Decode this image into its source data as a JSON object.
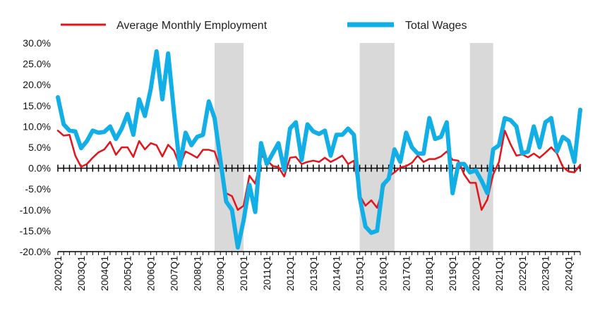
{
  "chart_data": {
    "type": "line",
    "title": "",
    "xlabel": "",
    "ylabel": "",
    "ylim": [
      -20,
      30
    ],
    "yticks": [
      "30.0%",
      "25.0%",
      "20.0%",
      "15.0%",
      "10.0%",
      "5.0%",
      "0.0%",
      "-5.0%",
      "-10.0%",
      "-15.0%",
      "-20.0%"
    ],
    "ytick_values": [
      30,
      25,
      20,
      15,
      10,
      5,
      0,
      -5,
      -10,
      -15,
      -20
    ],
    "xtick_labels": [
      "2002Q1",
      "2003Q1",
      "2004Q1",
      "2005Q1",
      "2006Q1",
      "2007Q1",
      "2008Q1",
      "2009Q1",
      "2010Q1",
      "2011Q1",
      "2012Q1",
      "2013Q1",
      "2014Q1",
      "2015Q1",
      "2016Q1",
      "2017Q1",
      "2018Q1",
      "2019Q1",
      "2020Q1",
      "2021Q1",
      "2022Q1",
      "2023Q1",
      "2024Q1"
    ],
    "start_quarter": "2002Q1",
    "grid": false,
    "legend_position": "top",
    "shaded_ranges": [
      [
        "2008Q4",
        "2010Q1"
      ],
      [
        "2015Q1",
        "2016Q3"
      ],
      [
        "2019Q4",
        "2020Q4"
      ]
    ],
    "series": [
      {
        "name": "Average Monthly Employment",
        "color": "#e3141b",
        "values": [
          9,
          7.8,
          8,
          3,
          0.3,
          1,
          2.5,
          3.8,
          4.5,
          6.3,
          3.2,
          5,
          5,
          2.7,
          6.5,
          4.5,
          6,
          5.5,
          2.8,
          5.6,
          4.2,
          0.5,
          4,
          3.3,
          2.5,
          4.4,
          4.4,
          4,
          0,
          -6,
          -6.7,
          -10,
          -9,
          -1.8,
          -3.7,
          3,
          2,
          0.5,
          0.3,
          -2,
          2.5,
          2.7,
          1,
          1.5,
          1.8,
          1.5,
          2.5,
          1.5,
          2.2,
          3,
          1,
          1.8,
          -6.5,
          -9,
          -7.7,
          -9.5,
          -5,
          -2,
          -1,
          0.2,
          0.5,
          1.3,
          3,
          1.5,
          2.2,
          2.2,
          2.8,
          4,
          2,
          1.8,
          -1.5,
          -3.5,
          -3.5,
          -10,
          -7.5,
          -1.5,
          1.5,
          9,
          5.7,
          3,
          3.3,
          2.6,
          3.5,
          2.5,
          3.7,
          5,
          3.5,
          0.3,
          -0.8,
          -1,
          0.8
        ]
      },
      {
        "name": "Total Wages",
        "color": "#12aee6",
        "values": [
          17,
          10.5,
          9,
          8.8,
          4.8,
          6.5,
          9,
          8.5,
          8.7,
          10,
          7,
          9.5,
          13,
          8,
          16.5,
          12.5,
          19,
          28,
          16.5,
          27.5,
          13.5,
          0.5,
          8.5,
          5.5,
          7.5,
          8,
          16,
          12,
          2,
          -8,
          -10,
          -19,
          -12.5,
          -4,
          -10.5,
          6,
          1,
          3.5,
          6,
          -0.5,
          9.5,
          11,
          2,
          10.5,
          8.8,
          8.2,
          9,
          3,
          8,
          8,
          9.5,
          8,
          -7,
          -14,
          -15.5,
          -15,
          -4,
          -2.5,
          4.5,
          1.5,
          8.5,
          5,
          3.5,
          3.5,
          12,
          7,
          7.5,
          11,
          -6,
          1,
          1,
          -1,
          -0.5,
          -3,
          -6,
          4.5,
          5.5,
          12,
          11.5,
          10,
          3.5,
          4,
          10,
          5,
          11,
          12,
          4,
          7.5,
          6.5,
          1.5,
          14
        ]
      }
    ]
  }
}
